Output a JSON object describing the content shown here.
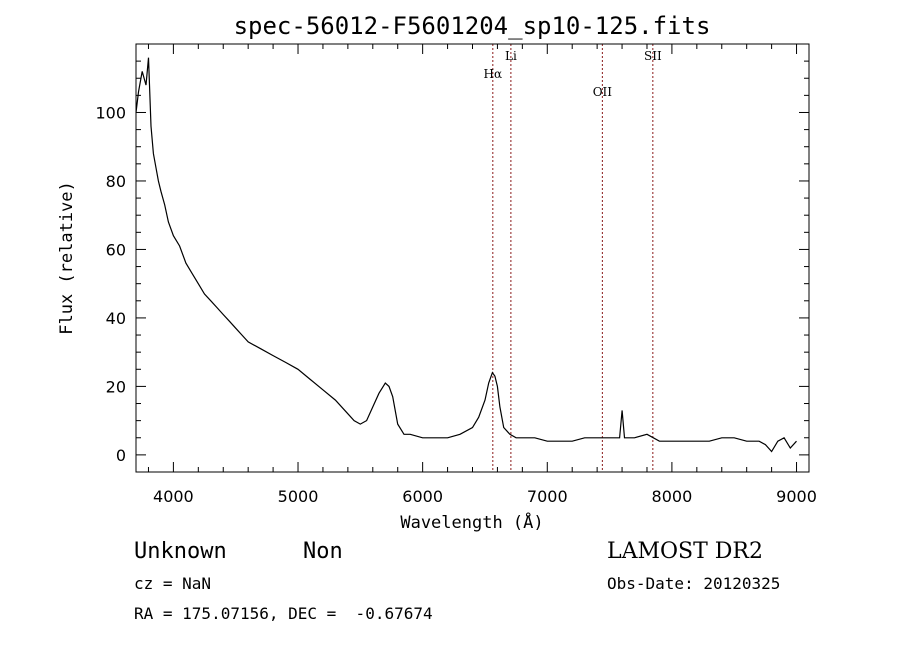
{
  "chart_data": {
    "type": "line",
    "title": "spec-56012-F5601204_sp10-125.fits",
    "xlabel": "Wavelength (Å)",
    "ylabel": "Flux (relative)",
    "xlim": [
      3700,
      9100
    ],
    "ylim": [
      -5,
      120
    ],
    "xticks": [
      4000,
      5000,
      6000,
      7000,
      8000,
      9000
    ],
    "yticks": [
      0,
      20,
      40,
      60,
      80,
      100
    ],
    "grid": false,
    "line_color": "#000000",
    "marker_color": "#8b1a1a",
    "series": [
      {
        "x": [
          3700,
          3720,
          3750,
          3780,
          3800,
          3820,
          3840,
          3860,
          3880,
          3900,
          3930,
          3960,
          4000,
          4050,
          4100,
          4150,
          4200,
          4250,
          4300,
          4350,
          4400,
          4450,
          4500,
          4550,
          4600,
          4700,
          4800,
          4900,
          5000,
          5100,
          5200,
          5300,
          5400,
          5450,
          5500,
          5550,
          5600,
          5650,
          5700,
          5730,
          5760,
          5800,
          5850,
          5900,
          6000,
          6100,
          6200,
          6300,
          6400,
          6450,
          6500,
          6530,
          6560,
          6580,
          6600,
          6620,
          6650,
          6700,
          6750,
          6800,
          6900,
          7000,
          7100,
          7200,
          7300,
          7400,
          7500,
          7580,
          7600,
          7620,
          7650,
          7700,
          7800,
          7900,
          8000,
          8100,
          8200,
          8300,
          8400,
          8500,
          8600,
          8700,
          8750,
          8800,
          8850,
          8900,
          8950,
          9000
        ],
        "y": [
          100,
          106,
          112,
          108,
          116,
          96,
          88,
          84,
          80,
          77,
          73,
          68,
          64,
          61,
          56,
          53,
          50,
          47,
          45,
          43,
          41,
          39,
          37,
          35,
          33,
          31,
          29,
          27,
          25,
          22,
          19,
          16,
          12,
          10,
          9,
          10,
          14,
          18,
          21,
          20,
          17,
          9,
          6,
          6,
          5,
          5,
          5,
          6,
          8,
          11,
          16,
          21,
          24,
          23,
          20,
          14,
          8,
          6,
          5,
          5,
          5,
          4,
          4,
          4,
          5,
          5,
          5,
          5,
          13,
          5,
          5,
          5,
          6,
          4,
          4,
          4,
          4,
          4,
          5,
          5,
          4,
          4,
          3,
          1,
          4,
          5,
          2,
          4
        ]
      }
    ],
    "annotations": [
      {
        "x": 6563,
        "label": "Hα"
      },
      {
        "x": 6708,
        "label": "Li"
      },
      {
        "x": 7442,
        "label": "OII"
      },
      {
        "x": 7847,
        "label": "SII"
      }
    ]
  },
  "info": {
    "class": "Unknown",
    "subclass": "Non",
    "survey": "LAMOST DR2",
    "cz": "cz = NaN",
    "obs_date": "Obs-Date: 20120325",
    "radec": "RA = 175.07156, DEC =  -0.67674"
  }
}
